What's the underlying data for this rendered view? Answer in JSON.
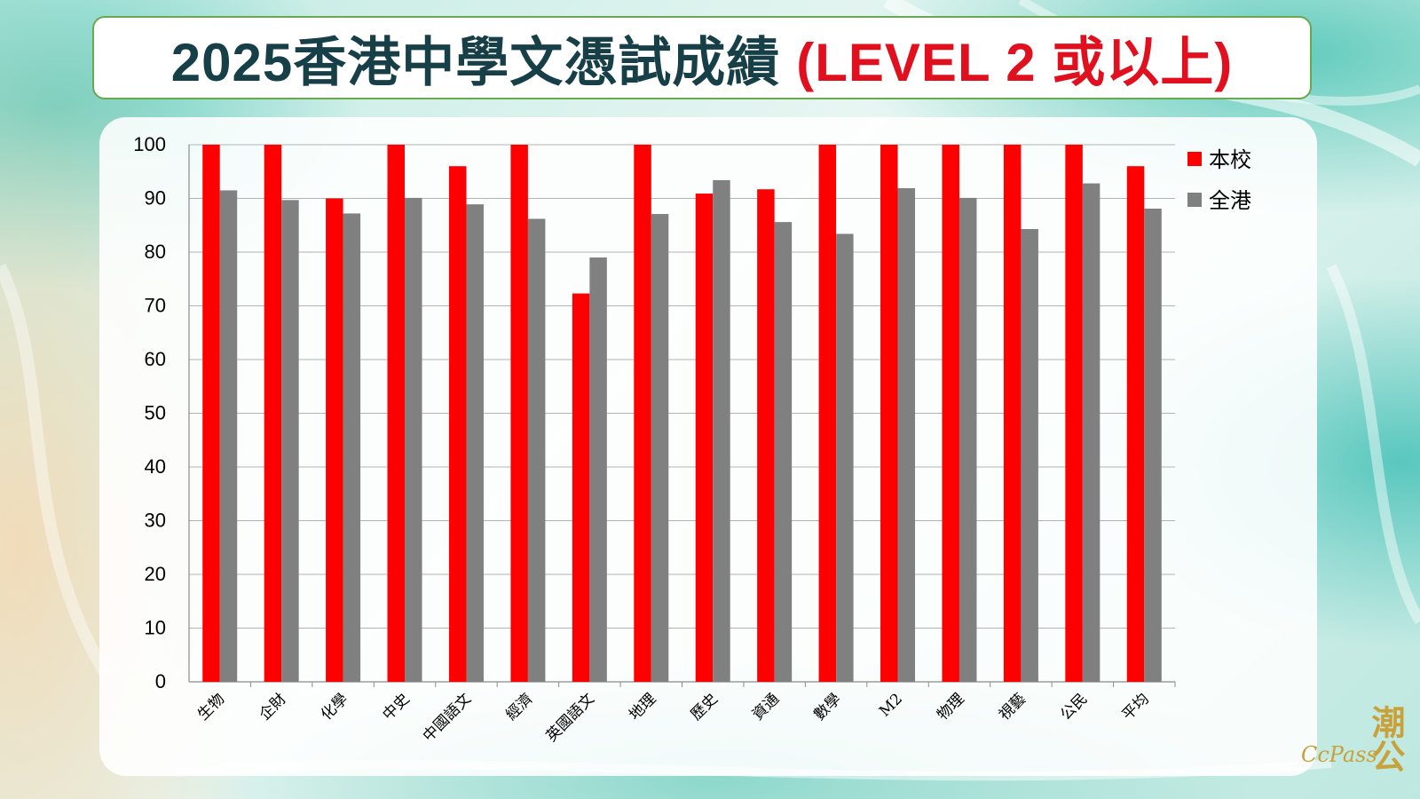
{
  "title": {
    "main": "2025香港中學文憑試成績",
    "accent": "(LEVEL 2 或以上)"
  },
  "logo": {
    "han": "潮公",
    "en": "CcPass"
  },
  "colors": {
    "school": "#ff0000",
    "territory": "#808080",
    "title_main": "#173f48",
    "title_accent": "#e0101e"
  },
  "chart_data": {
    "type": "bar",
    "categories": [
      "生物",
      "企財",
      "化學",
      "中史",
      "中國語文",
      "經濟",
      "英國語文",
      "地理",
      "歷史",
      "資通",
      "數學",
      "M2",
      "物理",
      "視藝",
      "公民",
      "平均"
    ],
    "series": [
      {
        "name": "本校",
        "values": [
          100,
          100,
          90,
          100,
          96,
          100,
          72.3,
          100,
          90.9,
          91.7,
          100,
          100,
          100,
          100,
          100,
          96
        ]
      },
      {
        "name": "全港",
        "values": [
          91.5,
          89.7,
          87.2,
          90.1,
          88.9,
          86.2,
          79,
          87.1,
          93.4,
          85.6,
          83.4,
          91.9,
          90.1,
          84.3,
          92.8,
          88.1
        ]
      }
    ],
    "yticks": [
      0,
      10,
      20,
      30,
      40,
      50,
      60,
      70,
      80,
      90,
      100
    ],
    "ylim": [
      0,
      100
    ],
    "grid": true,
    "legend": "right"
  }
}
